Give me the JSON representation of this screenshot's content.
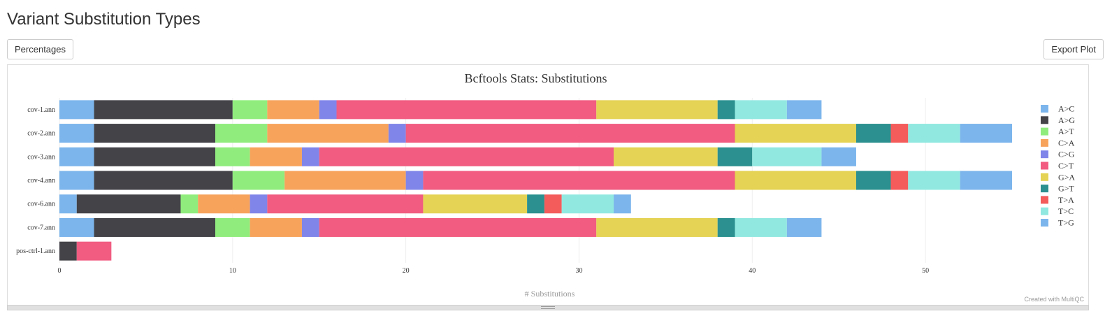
{
  "page": {
    "title": "Variant Substitution Types",
    "percentages_label": "Percentages",
    "export_label": "Export Plot",
    "credit": "Created with MultiQC"
  },
  "chart_data": {
    "type": "bar",
    "orientation": "horizontal",
    "stacked": true,
    "title": "Bcftools Stats: Substitutions",
    "xlabel": "# Substitutions",
    "ylabel": "",
    "xlim": [
      0,
      55
    ],
    "xticks": [
      0,
      10,
      20,
      30,
      40,
      50
    ],
    "grid": true,
    "legend_position": "right",
    "categories": [
      "cov-1.ann",
      "cov-2.ann",
      "cov-3.ann",
      "cov-4.ann",
      "cov-6.ann",
      "cov-7.ann",
      "pos-ctrl-1.ann"
    ],
    "series": [
      {
        "name": "A>C",
        "color": "#7cb5ec",
        "values": [
          2,
          2,
          2,
          2,
          1,
          2,
          0
        ]
      },
      {
        "name": "A>G",
        "color": "#434348",
        "values": [
          8,
          7,
          7,
          8,
          6,
          7,
          1
        ]
      },
      {
        "name": "A>T",
        "color": "#90ed7d",
        "values": [
          2,
          3,
          2,
          3,
          1,
          2,
          0
        ]
      },
      {
        "name": "C>A",
        "color": "#f7a35c",
        "values": [
          3,
          7,
          3,
          7,
          3,
          3,
          0
        ]
      },
      {
        "name": "C>G",
        "color": "#8085e9",
        "values": [
          1,
          1,
          1,
          1,
          1,
          1,
          0
        ]
      },
      {
        "name": "C>T",
        "color": "#f15c80",
        "values": [
          15,
          19,
          17,
          18,
          9,
          16,
          2
        ]
      },
      {
        "name": "G>A",
        "color": "#e4d354",
        "values": [
          7,
          7,
          6,
          7,
          6,
          7,
          0
        ]
      },
      {
        "name": "G>T",
        "color": "#2b908f",
        "values": [
          1,
          2,
          2,
          2,
          1,
          1,
          0
        ]
      },
      {
        "name": "T>A",
        "color": "#f45b5b",
        "values": [
          0,
          1,
          0,
          1,
          1,
          0,
          0
        ]
      },
      {
        "name": "T>C",
        "color": "#91e8e1",
        "values": [
          3,
          3,
          4,
          3,
          3,
          3,
          0
        ]
      },
      {
        "name": "T>G",
        "color": "#7cb5ec",
        "values": [
          2,
          3,
          2,
          3,
          1,
          2,
          0
        ]
      }
    ]
  }
}
